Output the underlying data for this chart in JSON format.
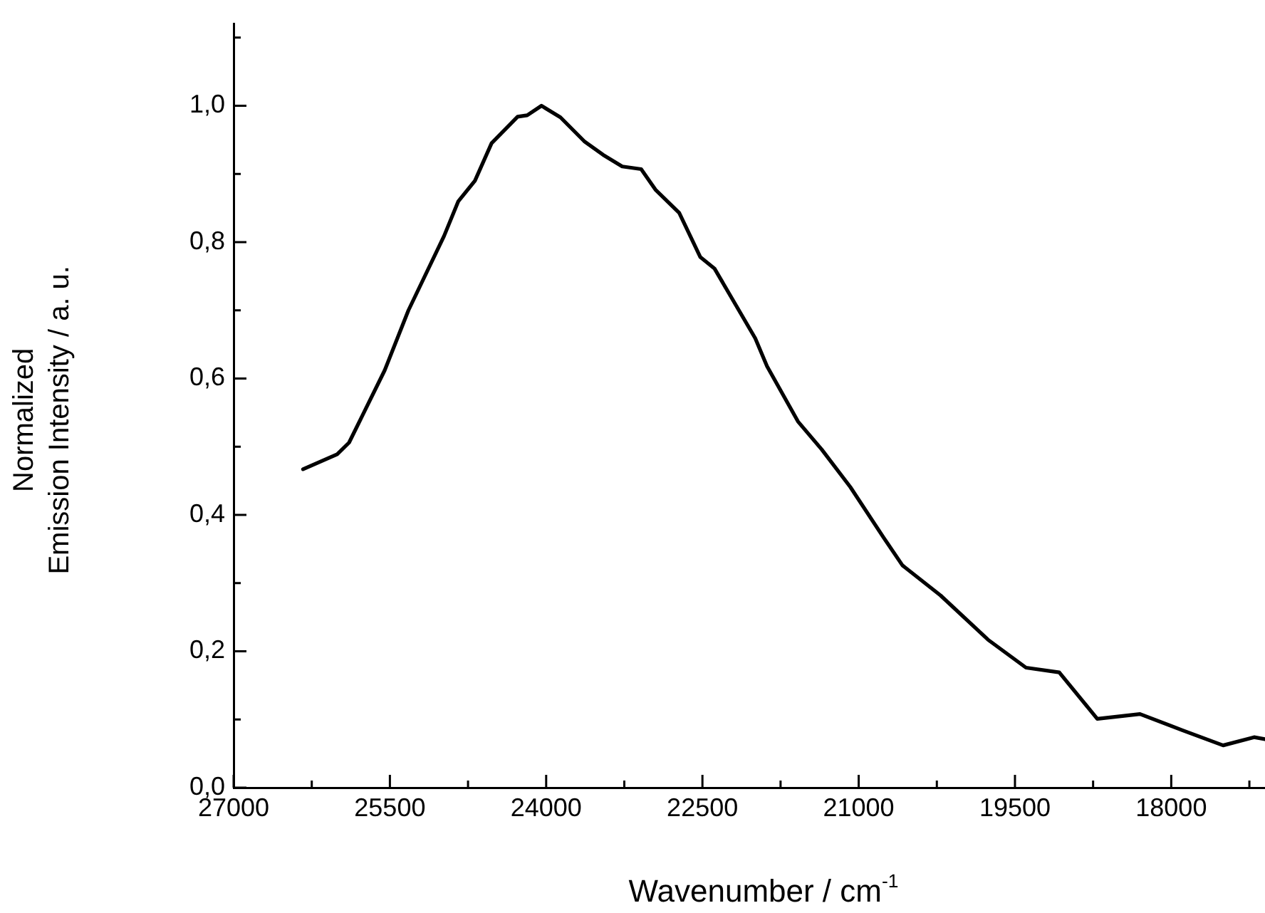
{
  "chart_data": {
    "type": "line",
    "xlabel": "Wavenumber / cm$^{-1}$",
    "ylabel": "Normalized\nEmission Intensity / a. u.",
    "x": [
      26334,
      26006,
      25892,
      25550,
      25322,
      24980,
      24843,
      24684,
      24524,
      24274,
      24182,
      24045,
      23863,
      23635,
      23453,
      23270,
      23088,
      22951,
      22723,
      22520,
      22383,
      21993,
      21880,
      21583,
      21355,
      21081,
      20762,
      20580,
      20215,
      19759,
      19394,
      19075,
      18710,
      18300,
      17889,
      17502,
      17205,
      17100
    ],
    "series": [
      {
        "color": "#000000",
        "values": [
          0.467,
          0.489,
          0.506,
          0.612,
          0.7,
          0.809,
          0.86,
          0.89,
          0.945,
          0.984,
          0.986,
          1.0,
          0.983,
          0.948,
          0.928,
          0.911,
          0.907,
          0.877,
          0.843,
          0.778,
          0.761,
          0.659,
          0.618,
          0.537,
          0.496,
          0.441,
          0.367,
          0.326,
          0.282,
          0.217,
          0.176,
          0.169,
          0.101,
          0.108,
          0.084,
          0.062,
          0.074,
          0.071
        ]
      }
    ],
    "xlim": [
      27000,
      17100
    ],
    "xticks": [
      27000,
      {
        "value": 26250,
        "label": null
      },
      25500,
      {
        "value": 24750,
        "label": null
      },
      24000,
      {
        "value": 23250,
        "label": null
      },
      22500,
      {
        "value": 21750,
        "label": null
      },
      21000,
      {
        "value": 20250,
        "label": null
      },
      19500,
      {
        "value": 18750,
        "label": null
      },
      18000,
      {
        "value": 17250,
        "label": null
      }
    ],
    "ylim": [
      0,
      1.12
    ],
    "yticks": [
      {
        "value": 0,
        "label": "0,0"
      },
      {
        "value": 0.1,
        "label": null
      },
      {
        "value": 0.2,
        "label": "0,2"
      },
      {
        "value": 0.3,
        "label": null
      },
      {
        "value": 0.4,
        "label": "0,4"
      },
      {
        "value": 0.5,
        "label": null
      },
      {
        "value": 0.6,
        "label": "0,6"
      },
      {
        "value": 0.7,
        "label": null
      },
      {
        "value": 0.8,
        "label": "0,8"
      },
      {
        "value": 0.9,
        "label": null
      },
      {
        "value": 1.0,
        "label": "1,0"
      },
      {
        "value": 1.1,
        "label": null
      }
    ],
    "grid": false,
    "legend": false,
    "marker": "none",
    "line_style": "solid"
  }
}
